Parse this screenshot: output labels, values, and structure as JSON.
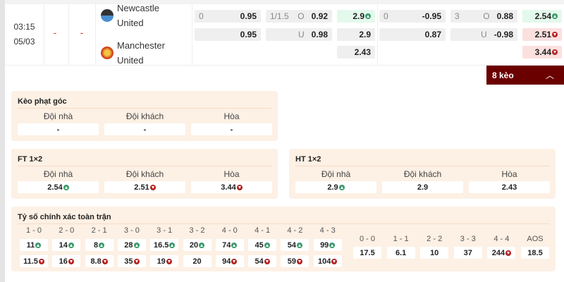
{
  "match": {
    "time": "03:15",
    "date": "05/03",
    "score_ft": "-",
    "score_ht": "-",
    "home": {
      "name_line1": "Newcastle",
      "name_line2": "United"
    },
    "away": {
      "name_line1": "Manchester",
      "name_line2": "United"
    }
  },
  "odds_rows": [
    [
      {
        "label": "0",
        "value": "0.95"
      },
      {
        "label": "1/1.5",
        "side": "O",
        "value": "0.92"
      },
      {
        "value": "2.9",
        "trend": "up"
      },
      {
        "label": "0",
        "value": "-0.95"
      },
      {
        "label": "3",
        "side": "O",
        "value": "0.88"
      },
      {
        "value": "2.54",
        "trend": "up"
      }
    ],
    [
      {
        "label": "",
        "value": "0.95"
      },
      {
        "label": "",
        "side": "U",
        "value": "0.98"
      },
      {
        "value": "2.9",
        "trend": ""
      },
      {
        "label": "",
        "value": "0.87"
      },
      {
        "label": "",
        "side": "U",
        "value": "-0.98"
      },
      {
        "value": "2.51",
        "trend": "down"
      }
    ],
    [
      {
        "value": "2.43",
        "trend": ""
      },
      {
        "value": "3.44",
        "trend": "down"
      }
    ]
  ],
  "more_button": {
    "label": "8 kèo",
    "icon": "chevron-up-icon"
  },
  "corner": {
    "title": "Kèo phạt góc",
    "cols": [
      "Đội nhà",
      "Đội khách",
      "Hòa"
    ],
    "values": [
      "-",
      "-",
      "-"
    ]
  },
  "ft": {
    "title": "FT 1×2",
    "cols": [
      "Đội nhà",
      "Đội khách",
      "Hòa"
    ],
    "values": [
      {
        "v": "2.54",
        "t": "up"
      },
      {
        "v": "2.51",
        "t": "down"
      },
      {
        "v": "3.44",
        "t": "down"
      }
    ]
  },
  "ht": {
    "title": "HT 1×2",
    "cols": [
      "Đội nhà",
      "Đội khách",
      "Hòa"
    ],
    "values": [
      {
        "v": "2.9",
        "t": "up"
      },
      {
        "v": "2.9",
        "t": ""
      },
      {
        "v": "2.43",
        "t": ""
      }
    ]
  },
  "correct_score": {
    "title": "Tỷ số chính xác toàn trận",
    "home_wins": [
      {
        "s": "1 - 0",
        "a": "11",
        "at": "up",
        "b": "11.5",
        "bt": "down"
      },
      {
        "s": "2 - 0",
        "a": "14",
        "at": "up",
        "b": "16",
        "bt": "down"
      },
      {
        "s": "2 - 1",
        "a": "8",
        "at": "up",
        "b": "8.8",
        "bt": "down"
      },
      {
        "s": "3 - 0",
        "a": "28",
        "at": "up",
        "b": "35",
        "bt": "down"
      },
      {
        "s": "3 - 1",
        "a": "16.5",
        "at": "up",
        "b": "19",
        "bt": "down"
      },
      {
        "s": "3 - 2",
        "a": "20",
        "at": "up",
        "b": "20",
        "bt": ""
      },
      {
        "s": "4 - 0",
        "a": "74",
        "at": "up",
        "b": "94",
        "bt": "down"
      },
      {
        "s": "4 - 1",
        "a": "45",
        "at": "up",
        "b": "54",
        "bt": "down"
      },
      {
        "s": "4 - 2",
        "a": "54",
        "at": "up",
        "b": "59",
        "bt": "down"
      },
      {
        "s": "4 - 3",
        "a": "99",
        "at": "up",
        "b": "104",
        "bt": "down"
      }
    ],
    "draws": [
      {
        "s": "0 - 0",
        "v": "17.5",
        "t": ""
      },
      {
        "s": "1 - 1",
        "v": "6.1",
        "t": ""
      },
      {
        "s": "2 - 2",
        "v": "10",
        "t": ""
      },
      {
        "s": "3 - 3",
        "v": "37",
        "t": ""
      },
      {
        "s": "4 - 4",
        "v": "244",
        "t": "down"
      },
      {
        "s": "AOS",
        "v": "18.5",
        "t": ""
      }
    ]
  },
  "colors": {
    "up_bg": "#e3f9ec",
    "down_bg": "#fbe0e0",
    "up_icon": "#3a9a6a",
    "down_icon": "#b52020",
    "accent": "#6b0000",
    "panel": "#fdf0e4"
  }
}
